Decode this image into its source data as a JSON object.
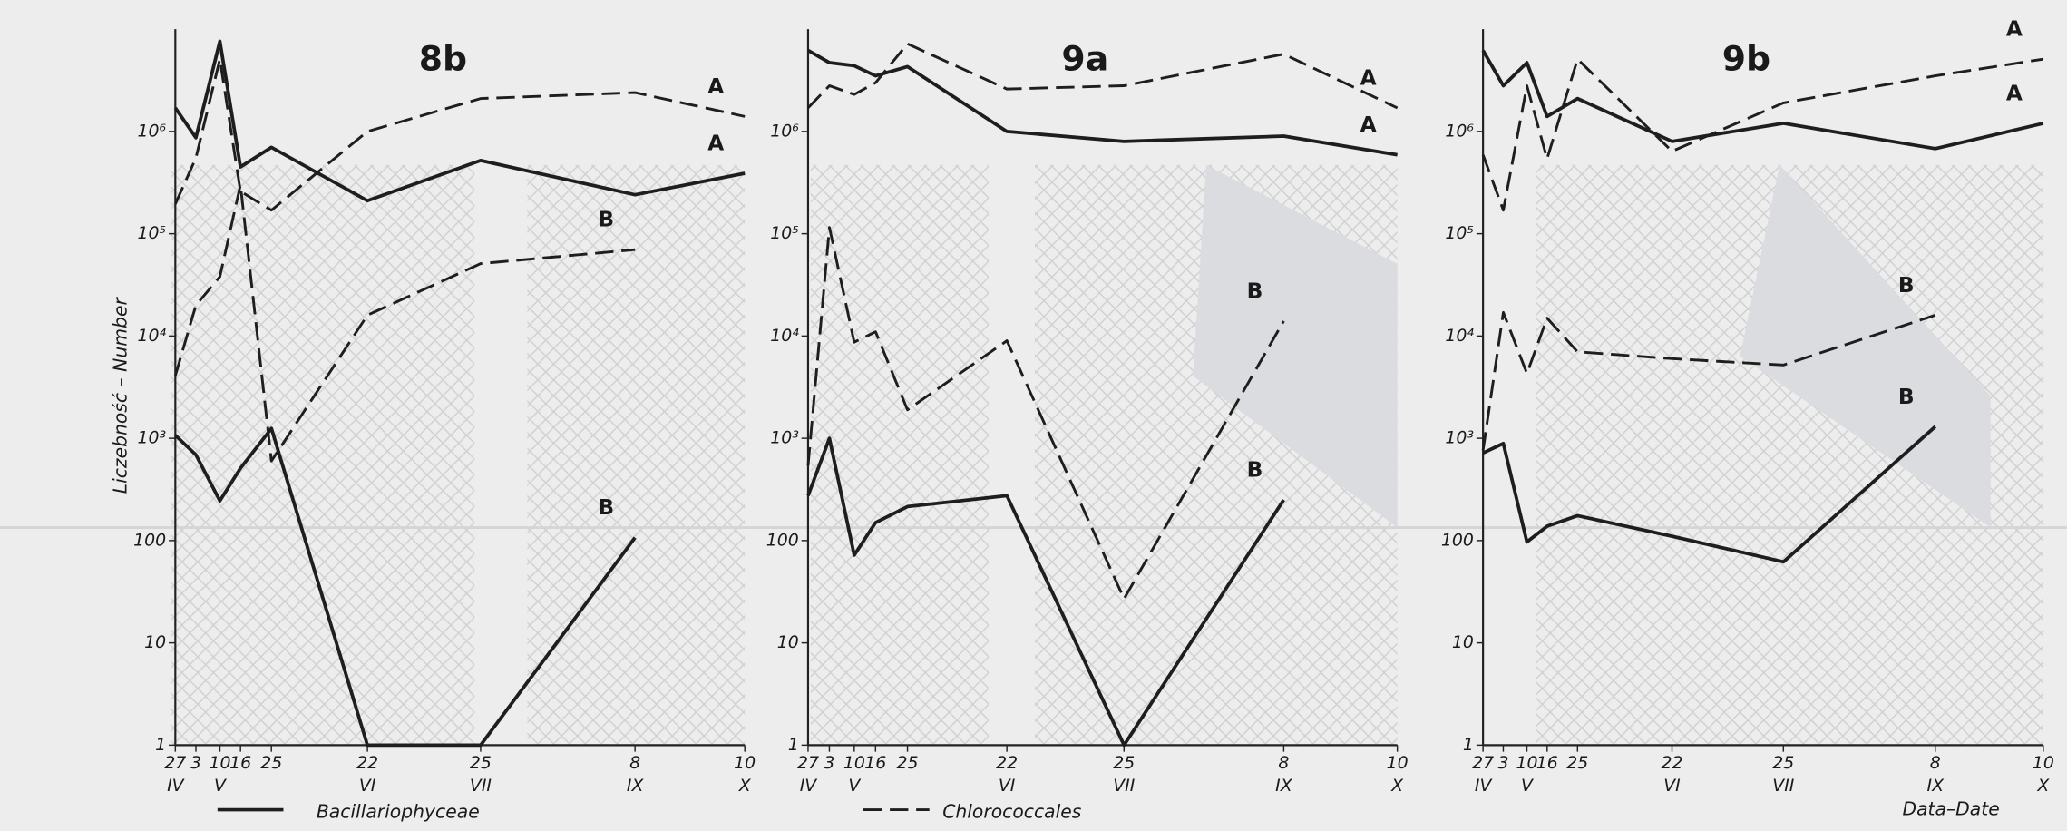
{
  "chart_data": [
    {
      "type": "line",
      "title": "8b",
      "y_label": "Liczebność – Number",
      "categories": [
        "27",
        "3",
        "10",
        "16",
        "25",
        "22",
        "25",
        "8",
        "10"
      ],
      "category_months": [
        "IV",
        null,
        "V",
        null,
        null,
        "VI",
        "VII",
        "IX",
        "X"
      ],
      "log_y": true,
      "ylim": [
        1,
        10000000
      ],
      "yticks": [
        1,
        10,
        100,
        {
          "value": 1000,
          "label": "10³"
        },
        {
          "value": 10000,
          "label": "10⁴"
        },
        {
          "value": 100000,
          "label": "10⁵"
        },
        {
          "value": 1000000,
          "label": "10⁶"
        }
      ],
      "series": [
        {
          "name": "Bacillariophyceae",
          "label": "A",
          "color": "#1e1e1e",
          "dashed": false,
          "values": [
            1700000,
            870000,
            7600000,
            450000,
            700000,
            210000,
            520000,
            240000,
            390000
          ]
        },
        {
          "name": "Chlorococcales",
          "label": "A",
          "color": "#1e1e1e",
          "dashed": true,
          "values": [
            195000,
            550000,
            5100000,
            260000,
            170000,
            1000000,
            2100000,
            2400000,
            1400000
          ]
        },
        {
          "name": "Bacillariophyceae",
          "label": "B",
          "color": "#1e1e1e",
          "dashed": false,
          "values": [
            1070,
            690,
            245,
            510,
            1250,
            1,
            1,
            107,
            null
          ]
        },
        {
          "name": "Chlorococcales",
          "label": "B",
          "color": "#1e1e1e",
          "dashed": true,
          "values": [
            4100,
            20000,
            38000,
            300000,
            600,
            16000,
            51000,
            70000,
            null
          ]
        }
      ]
    },
    {
      "type": "line",
      "title": "9a",
      "categories": [
        "27",
        "3",
        "10",
        "16",
        "25",
        "22",
        "25",
        "8",
        "10"
      ],
      "category_months": [
        "IV",
        null,
        "V",
        null,
        null,
        "VI",
        "VII",
        "IX",
        "X"
      ],
      "log_y": true,
      "ylim": [
        1,
        10000000
      ],
      "yticks": [
        1,
        10,
        100,
        {
          "value": 1000,
          "label": "10³"
        },
        {
          "value": 10000,
          "label": "10⁴"
        },
        {
          "value": 100000,
          "label": "10⁵"
        },
        {
          "value": 1000000,
          "label": "10⁶"
        }
      ],
      "series": [
        {
          "name": "Bacillariophyceae",
          "label": "A",
          "color": "#1e1e1e",
          "dashed": false,
          "values": [
            6200000,
            4700000,
            4400000,
            3500000,
            4300000,
            1000000,
            800000,
            900000,
            590000
          ]
        },
        {
          "name": "Chlorococcales",
          "label": "A",
          "color": "#1e1e1e",
          "dashed": true,
          "values": [
            1700000,
            2800000,
            2300000,
            3000000,
            7200000,
            2600000,
            2800000,
            5700000,
            1700000
          ]
        },
        {
          "name": "Bacillariophyceae",
          "label": "B",
          "color": "#1e1e1e",
          "dashed": false,
          "values": [
            275,
            1000,
            72,
            150,
            215,
            275,
            1,
            250,
            null
          ]
        },
        {
          "name": "Chlorococcales",
          "label": "B",
          "color": "#1e1e1e",
          "dashed": true,
          "values": [
            540,
            115000,
            8700,
            11000,
            1900,
            9000,
            27,
            14000,
            null
          ]
        }
      ]
    },
    {
      "type": "line",
      "title": "9b",
      "x_label": "Data–Date",
      "categories": [
        "27",
        "3",
        "10",
        "16",
        "25",
        "22",
        "25",
        "8",
        "10"
      ],
      "category_months": [
        "IV",
        null,
        "V",
        null,
        null,
        "VI",
        "VII",
        "IX",
        "X"
      ],
      "log_y": true,
      "ylim": [
        1,
        10000000
      ],
      "yticks": [
        1,
        10,
        100,
        {
          "value": 1000,
          "label": "10³"
        },
        {
          "value": 10000,
          "label": "10⁴"
        },
        {
          "value": 100000,
          "label": "10⁵"
        },
        {
          "value": 1000000,
          "label": "10⁶"
        }
      ],
      "series": [
        {
          "name": "Bacillariophyceae",
          "label": "A",
          "color": "#1e1e1e",
          "dashed": false,
          "values": [
            6200000,
            2800000,
            4700000,
            1400000,
            2100000,
            800000,
            1200000,
            680000,
            1200000
          ]
        },
        {
          "name": "Chlorococcales",
          "label": "A",
          "color": "#1e1e1e",
          "dashed": true,
          "values": [
            590000,
            170000,
            2800000,
            540000,
            5100000,
            640000,
            1900000,
            3500000,
            5100000
          ]
        },
        {
          "name": "Bacillariophyceae",
          "label": "B",
          "color": "#1e1e1e",
          "dashed": false,
          "values": [
            720,
            890,
            97,
            138,
            175,
            110,
            62,
            1300,
            null
          ]
        },
        {
          "name": "Chlorococcales",
          "label": "B",
          "color": "#1e1e1e",
          "dashed": true,
          "values": [
            760,
            17000,
            4300,
            15000,
            7000,
            6000,
            5200,
            16000,
            null
          ]
        }
      ]
    }
  ]
}
